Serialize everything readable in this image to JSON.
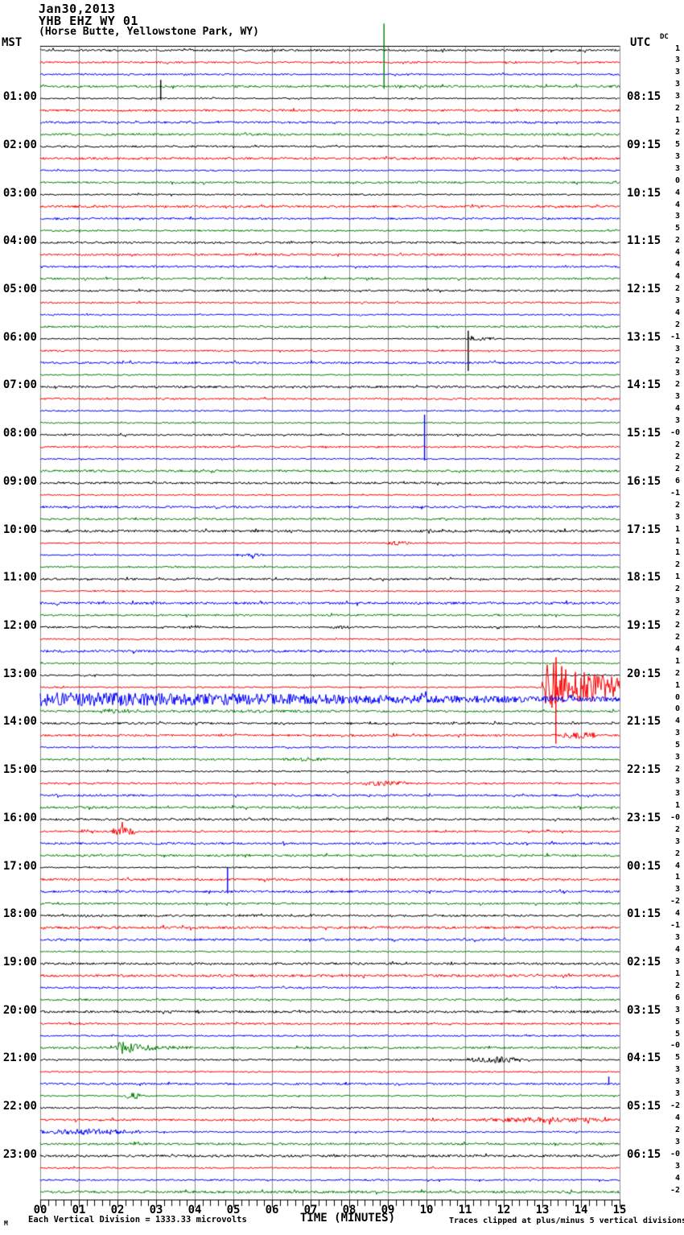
{
  "header": {
    "date": "Jan30,2013",
    "station": "YHB EHZ WY 01",
    "location": "(Horse Butte, Yellowstone Park, WY)",
    "left_tz": "MST",
    "right_tz": "UTC",
    "dc_label": "DC"
  },
  "footer": {
    "scale_note": "Each Vertical Division = 1333.33 microvolts",
    "axis_label": "TIME (MINUTES)",
    "clip_note": "Traces clipped at plus/minus 5 vertical divisions",
    "corner_mark": "M"
  },
  "chart_data": {
    "type": "line",
    "subtype": "helicorder-seismogram",
    "title": "YHB EHZ WY 01 webicorder, Jan30,2013",
    "xlabel": "TIME (MINUTES)",
    "x_range": [
      0,
      15
    ],
    "minutes_per_line": 15,
    "rows": 96,
    "clip_divisions": 5,
    "microvolts_per_division": "1333.33",
    "grid": true,
    "grid_color": "#8c8c8c",
    "row_color_cycle": [
      "#000000",
      "#ff0000",
      "#0000ff",
      "#008000"
    ],
    "x_ticks": [
      "00",
      "01",
      "02",
      "03",
      "04",
      "05",
      "06",
      "07",
      "08",
      "09",
      "10",
      "11",
      "12",
      "13",
      "14",
      "15"
    ],
    "label_row_start": 4,
    "label_row_step": 4,
    "left_time_labels": [
      "01:00",
      "02:00",
      "03:00",
      "04:00",
      "05:00",
      "06:00",
      "07:00",
      "08:00",
      "09:00",
      "10:00",
      "11:00",
      "12:00",
      "13:00",
      "14:00",
      "15:00",
      "16:00",
      "17:00",
      "18:00",
      "19:00",
      "20:00",
      "21:00",
      "22:00",
      "23:00"
    ],
    "right_time_labels": [
      "08:15",
      "09:15",
      "10:15",
      "11:15",
      "12:15",
      "13:15",
      "14:15",
      "15:15",
      "16:15",
      "17:15",
      "18:15",
      "19:15",
      "20:15",
      "21:15",
      "22:15",
      "23:15",
      "00:15",
      "01:15",
      "02:15",
      "03:15",
      "04:15",
      "05:15",
      "06:15"
    ],
    "dc_values": [
      "1",
      "3",
      "3",
      "3",
      "3",
      "2",
      "1",
      "2",
      "5",
      "3",
      "3",
      "0",
      "4",
      "4",
      "3",
      "5",
      "2",
      "4",
      "4",
      "4",
      "2",
      "3",
      "4",
      "2",
      "-1",
      "3",
      "2",
      "3",
      "2",
      "3",
      "4",
      "3",
      "-0",
      "2",
      "2",
      "2",
      "6",
      "-1",
      "2",
      "3",
      "1",
      "1",
      "1",
      "2",
      "1",
      "2",
      "3",
      "2",
      "2",
      "2",
      "4",
      "1",
      "2",
      "1",
      "0",
      "0",
      "4",
      "3",
      "5",
      "3",
      "2",
      "3",
      "3",
      "1",
      "-0",
      "2",
      "3",
      "2",
      "4",
      "1",
      "3",
      "-2",
      "4",
      "-1",
      "3",
      "4",
      "3",
      "1",
      "2",
      "6",
      "3",
      "5",
      "5",
      "-0",
      "5",
      "3",
      "3",
      "3",
      "-2",
      "4",
      "2",
      "3",
      "-0",
      "3",
      "4",
      "-2"
    ],
    "events": [
      {
        "row": 3,
        "type": "spike",
        "minute": 8.9,
        "up": 78,
        "down": 3,
        "desc": "tall green spike extending above plot"
      },
      {
        "row": 4,
        "type": "spike",
        "minute": 3.12,
        "up": 23,
        "down": 2
      },
      {
        "row": 24,
        "type": "spike",
        "minute": 11.08,
        "up": 10,
        "down": 40,
        "desc": "sharp black spike 13:15 UTC row"
      },
      {
        "row": 24,
        "type": "burst",
        "start": 11.08,
        "end": 11.8,
        "amp": 3
      },
      {
        "row": 34,
        "type": "spike",
        "minute": 9.95,
        "up": 55,
        "down": 2,
        "desc": "blue clipped spike"
      },
      {
        "row": 41,
        "type": "burst",
        "start": 8.95,
        "end": 9.55,
        "amp": 3
      },
      {
        "row": 42,
        "type": "burst",
        "start": 5.0,
        "end": 5.8,
        "amp": 2.5
      },
      {
        "row": 48,
        "type": "burst",
        "start": 3.7,
        "end": 4.15,
        "amp": 3
      },
      {
        "row": 48,
        "type": "burst",
        "start": 7.5,
        "end": 8.0,
        "amp": 2.5
      },
      {
        "row": 53,
        "type": "quake",
        "start": 12.95,
        "peak": 13.25,
        "end": 15,
        "amp": 48,
        "coda_amp": 16,
        "desc": "large clipped event on 20:15 UTC red trace"
      },
      {
        "row": 53,
        "type": "spike",
        "minute": 13.35,
        "up": 20,
        "down": 70
      },
      {
        "row": 54,
        "type": "decay_noise",
        "start": 0,
        "end": 15,
        "amp": 9,
        "end_amp": 3,
        "desc": "coda continuing on blue trace"
      },
      {
        "row": 55,
        "type": "burst",
        "start": 1.55,
        "end": 2.35,
        "amp": 4
      },
      {
        "row": 55,
        "type": "burst",
        "start": 2.35,
        "end": 9,
        "amp": 2
      },
      {
        "row": 57,
        "type": "burst",
        "start": 8.95,
        "end": 9.35,
        "amp": 3
      },
      {
        "row": 57,
        "type": "burst",
        "start": 13.5,
        "end": 14.4,
        "amp": 5
      },
      {
        "row": 59,
        "type": "burst",
        "start": 6.2,
        "end": 7.6,
        "amp": 2.5
      },
      {
        "row": 61,
        "type": "burst",
        "start": 8.35,
        "end": 9.45,
        "amp": 4
      },
      {
        "row": 65,
        "type": "burst",
        "start": 1.85,
        "end": 2.45,
        "amp": 6
      },
      {
        "row": 70,
        "type": "spike",
        "minute": 4.85,
        "up": 30,
        "down": 2
      },
      {
        "row": 83,
        "type": "quake",
        "start": 1.9,
        "peak": 2.15,
        "end": 3.9,
        "amp": 12,
        "coda_amp": 2,
        "desc": "small event on 03:45 UTC green trace"
      },
      {
        "row": 84,
        "type": "burst",
        "start": 11.05,
        "end": 12.6,
        "amp": 4
      },
      {
        "row": 86,
        "type": "spike",
        "minute": 14.72,
        "up": 9,
        "down": 1
      },
      {
        "row": 87,
        "type": "burst",
        "start": 2.2,
        "end": 2.6,
        "amp": 5
      },
      {
        "row": 89,
        "type": "burst",
        "start": 11.3,
        "end": 15,
        "amp": 3.5
      },
      {
        "row": 90,
        "type": "burst",
        "start": 0,
        "end": 2.6,
        "amp": 4
      }
    ]
  }
}
